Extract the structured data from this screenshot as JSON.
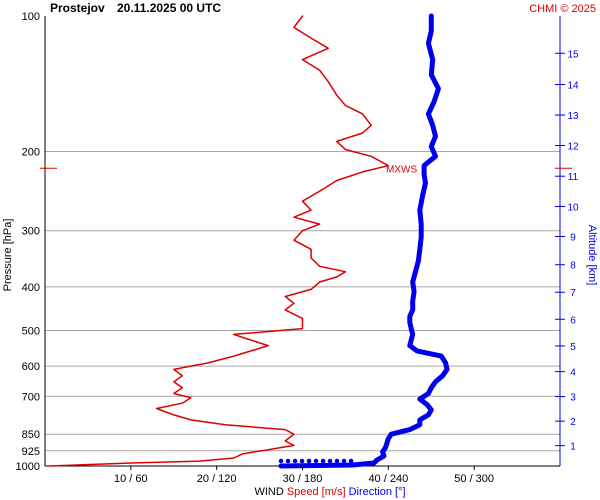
{
  "header": {
    "station": "Prostejov",
    "datetime": "20.11.2025 00 UTC",
    "credit": "CHMI © 2025"
  },
  "chart_data": {
    "type": "line",
    "title": "Prostejov   20.11.2025 00 UTC",
    "ylabel": "Pressure [hPa]",
    "y2label": "Altitude [km]",
    "xlabel_parts": [
      {
        "text": "WIND",
        "color": "#000000"
      },
      {
        "text": "Speed [m/s]",
        "color": "#dd0000"
      },
      {
        "text": "Direction [°]",
        "color": "#0000ee"
      }
    ],
    "y_scale": "log",
    "y_reversed": true,
    "ylim": [
      1000,
      100
    ],
    "pressure_ticks": [
      100,
      200,
      300,
      400,
      500,
      600,
      700,
      850,
      925,
      1000
    ],
    "altitude_ticks": [
      {
        "km": "1",
        "p": 901
      },
      {
        "km": "2",
        "p": 795
      },
      {
        "km": "3",
        "p": 701
      },
      {
        "km": "4",
        "p": 617
      },
      {
        "km": "5",
        "p": 541
      },
      {
        "km": "6",
        "p": 472
      },
      {
        "km": "7",
        "p": 411
      },
      {
        "km": "8",
        "p": 357
      },
      {
        "km": "9",
        "p": 309
      },
      {
        "km": "10",
        "p": 265
      },
      {
        "km": "11",
        "p": 227
      },
      {
        "km": "12",
        "p": 194
      },
      {
        "km": "13",
        "p": 166
      },
      {
        "km": "14",
        "p": 142
      },
      {
        "km": "15",
        "p": 121
      }
    ],
    "x_ticks": [
      {
        "label": "10 / 60",
        "speed": 10
      },
      {
        "label": "20 / 120",
        "speed": 20
      },
      {
        "label": "30 / 180",
        "speed": 30
      },
      {
        "label": "40 / 240",
        "speed": 40
      },
      {
        "label": "50 / 300",
        "speed": 50
      }
    ],
    "speed_range": [
      0,
      60
    ],
    "direction_range": [
      0,
      360
    ],
    "grid": true,
    "max_wind": {
      "label": "MXWS",
      "p": 218
    },
    "series": [
      {
        "name": "Speed [m/s]",
        "color": "#dd0000",
        "points": [
          [
            1000,
            0.5
          ],
          [
            985,
            10
          ],
          [
            975,
            18
          ],
          [
            960,
            22
          ],
          [
            940,
            23
          ],
          [
            920,
            26
          ],
          [
            900,
            29
          ],
          [
            880,
            28
          ],
          [
            850,
            29
          ],
          [
            830,
            28
          ],
          [
            810,
            21
          ],
          [
            790,
            17
          ],
          [
            770,
            15
          ],
          [
            745,
            13
          ],
          [
            725,
            16
          ],
          [
            705,
            17
          ],
          [
            690,
            15
          ],
          [
            670,
            16
          ],
          [
            650,
            15
          ],
          [
            630,
            16
          ],
          [
            610,
            15
          ],
          [
            590,
            19
          ],
          [
            570,
            22
          ],
          [
            555,
            24
          ],
          [
            540,
            26
          ],
          [
            525,
            24
          ],
          [
            510,
            22
          ],
          [
            495,
            30
          ],
          [
            470,
            30
          ],
          [
            450,
            28
          ],
          [
            435,
            29
          ],
          [
            420,
            28
          ],
          [
            405,
            31
          ],
          [
            390,
            32
          ],
          [
            380,
            34
          ],
          [
            370,
            35
          ],
          [
            360,
            32
          ],
          [
            345,
            31
          ],
          [
            330,
            31
          ],
          [
            315,
            29
          ],
          [
            300,
            30
          ],
          [
            290,
            32
          ],
          [
            280,
            29
          ],
          [
            270,
            31
          ],
          [
            258,
            30
          ],
          [
            245,
            32
          ],
          [
            232,
            34
          ],
          [
            222,
            37
          ],
          [
            215,
            40
          ],
          [
            205,
            38
          ],
          [
            198,
            35
          ],
          [
            190,
            34
          ],
          [
            182,
            37
          ],
          [
            175,
            38
          ],
          [
            165,
            37
          ],
          [
            158,
            35
          ],
          [
            150,
            34
          ],
          [
            140,
            33
          ],
          [
            132,
            32
          ],
          [
            125,
            30
          ],
          [
            118,
            33
          ],
          [
            112,
            31
          ],
          [
            106,
            29
          ],
          [
            100,
            30
          ]
        ]
      },
      {
        "name": "Direction [°]",
        "color": "#0000ee",
        "points": [
          [
            1000,
            165
          ],
          [
            995,
            215
          ],
          [
            985,
            230
          ],
          [
            970,
            232
          ],
          [
            950,
            237
          ],
          [
            930,
            236
          ],
          [
            910,
            238
          ],
          [
            890,
            239
          ],
          [
            870,
            240
          ],
          [
            850,
            242
          ],
          [
            830,
            255
          ],
          [
            810,
            262
          ],
          [
            790,
            262
          ],
          [
            770,
            268
          ],
          [
            750,
            270
          ],
          [
            730,
            267
          ],
          [
            710,
            262
          ],
          [
            690,
            268
          ],
          [
            670,
            270
          ],
          [
            650,
            273
          ],
          [
            630,
            278
          ],
          [
            610,
            281
          ],
          [
            590,
            280
          ],
          [
            570,
            277
          ],
          [
            555,
            260
          ],
          [
            540,
            255
          ],
          [
            525,
            256
          ],
          [
            510,
            257
          ],
          [
            495,
            256
          ],
          [
            480,
            255
          ],
          [
            465,
            255
          ],
          [
            450,
            257
          ],
          [
            430,
            257
          ],
          [
            410,
            258
          ],
          [
            390,
            257
          ],
          [
            370,
            259
          ],
          [
            350,
            261
          ],
          [
            330,
            262
          ],
          [
            310,
            263
          ],
          [
            290,
            263
          ],
          [
            270,
            262
          ],
          [
            250,
            264
          ],
          [
            235,
            266
          ],
          [
            225,
            265
          ],
          [
            215,
            265
          ],
          [
            205,
            273
          ],
          [
            195,
            270
          ],
          [
            185,
            273
          ],
          [
            175,
            271
          ],
          [
            165,
            268
          ],
          [
            155,
            272
          ],
          [
            145,
            275
          ],
          [
            135,
            270
          ],
          [
            125,
            271
          ],
          [
            115,
            268
          ],
          [
            108,
            270
          ],
          [
            100,
            270
          ]
        ]
      }
    ]
  }
}
